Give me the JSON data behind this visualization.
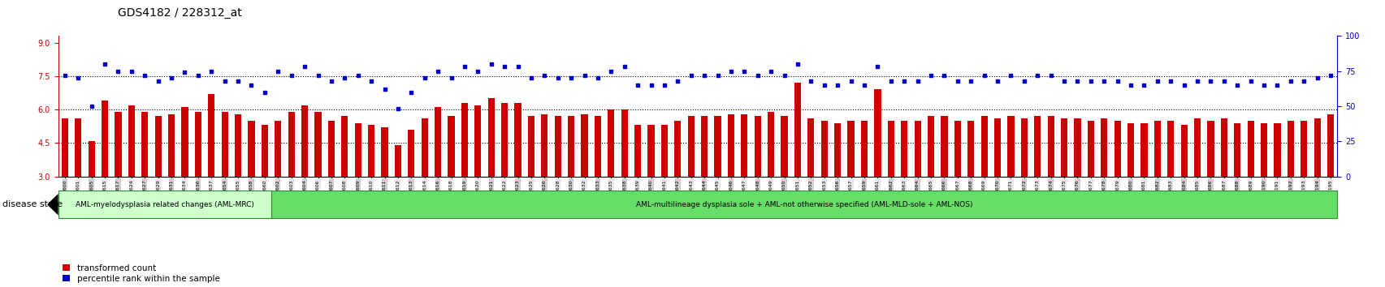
{
  "title": "GDS4182 / 228312_at",
  "left_yticks": [
    3,
    4.5,
    6,
    7.5,
    9
  ],
  "right_yticks": [
    0,
    25,
    50,
    75,
    100
  ],
  "left_ylim": [
    3,
    9.3
  ],
  "right_ylim": [
    0,
    100
  ],
  "hlines": [
    4.5,
    6.0,
    7.5
  ],
  "bar_color": "#cc0000",
  "dot_color": "#0000cc",
  "bar_width": 0.5,
  "sample_ids": [
    "GSM531600",
    "GSM531601",
    "GSM531605",
    "GSM531615",
    "GSM531617",
    "GSM531624",
    "GSM531627",
    "GSM531629",
    "GSM531631",
    "GSM531634",
    "GSM531636",
    "GSM531637",
    "GSM531654",
    "GSM531655",
    "GSM531658",
    "GSM531660",
    "GSM531602",
    "GSM531603",
    "GSM531604",
    "GSM531606",
    "GSM531607",
    "GSM531608",
    "GSM531609",
    "GSM531610",
    "GSM531611",
    "GSM531612",
    "GSM531613",
    "GSM531614",
    "GSM531616",
    "GSM531618",
    "GSM531619",
    "GSM531620",
    "GSM531621",
    "GSM531622",
    "GSM531623",
    "GSM531625",
    "GSM531626",
    "GSM531628",
    "GSM531630",
    "GSM531632",
    "GSM531633",
    "GSM531635",
    "GSM531638",
    "GSM531639",
    "GSM531640",
    "GSM531641",
    "GSM531642",
    "GSM531643",
    "GSM531644",
    "GSM531645",
    "GSM531646",
    "GSM531647",
    "GSM531648",
    "GSM531649",
    "GSM531650",
    "GSM531651",
    "GSM531652",
    "GSM531653",
    "GSM531656",
    "GSM531657",
    "GSM531659",
    "GSM531661",
    "GSM531662",
    "GSM531663",
    "GSM531664",
    "GSM531665",
    "GSM531666",
    "GSM531667",
    "GSM531668",
    "GSM531669",
    "GSM531670",
    "GSM531671",
    "GSM531672",
    "GSM531673",
    "GSM531674",
    "GSM531675",
    "GSM531676",
    "GSM531677",
    "GSM531678",
    "GSM531679",
    "GSM531680",
    "GSM531681",
    "GSM531682",
    "GSM531683",
    "GSM531684",
    "GSM531685",
    "GSM531686",
    "GSM531687",
    "GSM531688",
    "GSM531689",
    "GSM531190",
    "GSM531191",
    "GSM531192",
    "GSM531193",
    "GSM531194",
    "GSM531195"
  ],
  "bar_values": [
    5.6,
    5.6,
    4.6,
    6.4,
    5.9,
    6.2,
    5.9,
    5.7,
    5.8,
    6.1,
    5.9,
    6.7,
    5.9,
    5.8,
    5.5,
    5.3,
    5.5,
    5.9,
    6.2,
    5.9,
    5.5,
    5.7,
    5.4,
    5.3,
    5.2,
    4.4,
    5.1,
    5.6,
    6.1,
    5.7,
    6.3,
    6.2,
    6.5,
    6.3,
    6.3,
    5.7,
    5.8,
    5.7,
    5.7,
    5.8,
    5.7,
    6.0,
    6.0,
    5.3,
    5.3,
    5.3,
    5.5,
    5.7,
    5.7,
    5.7,
    5.8,
    5.8,
    5.7,
    5.9,
    5.7,
    7.2,
    5.6,
    5.5,
    5.4,
    5.5,
    5.5,
    6.9,
    5.5,
    5.5,
    5.5,
    5.7,
    5.7,
    5.5,
    5.5,
    5.7,
    5.6,
    5.7,
    5.6,
    5.7,
    5.7,
    5.6,
    5.6,
    5.5,
    5.6,
    5.5,
    5.4,
    5.4,
    5.5,
    5.5,
    5.3,
    5.6,
    5.5,
    5.6,
    5.4,
    5.5,
    5.4,
    5.4,
    5.5,
    5.5,
    5.6,
    5.8
  ],
  "dot_percentile": [
    72,
    70,
    50,
    80,
    75,
    75,
    72,
    68,
    70,
    74,
    72,
    75,
    68,
    68,
    65,
    60,
    75,
    72,
    78,
    72,
    68,
    70,
    72,
    68,
    62,
    48,
    60,
    70,
    75,
    70,
    78,
    75,
    80,
    78,
    78,
    70,
    72,
    70,
    70,
    72,
    70,
    75,
    78,
    65,
    65,
    65,
    68,
    72,
    72,
    72,
    75,
    75,
    72,
    75,
    72,
    80,
    68,
    65,
    65,
    68,
    65,
    78,
    68,
    68,
    68,
    72,
    72,
    68,
    68,
    72,
    68,
    72,
    68,
    72,
    72,
    68,
    68,
    68,
    68,
    68,
    65,
    65,
    68,
    68,
    65,
    68,
    68,
    68,
    65,
    68,
    65,
    65,
    68,
    68,
    70,
    72
  ],
  "group1_count": 16,
  "group1_label": "AML-myelodysplasia related changes (AML-MRC)",
  "group2_label": "AML-multilineage dysplasia sole + AML-not otherwise specified (AML-MLD-sole + AML-NOS)",
  "group1_color": "#ccffcc",
  "group2_color": "#66dd66",
  "disease_state_label": "disease state",
  "legend_bar_label": "transformed count",
  "legend_dot_label": "percentile rank within the sample",
  "tick_color_left": "#cc0000",
  "tick_color_right": "#0000cc",
  "bg_color": "#ffffff",
  "xlabel_tick_size": 4.5,
  "title_fontsize": 10,
  "axis_tick_fontsize": 7,
  "tick_alt_color1": "#d0d0d0",
  "tick_alt_color2": "#e8e8e8"
}
